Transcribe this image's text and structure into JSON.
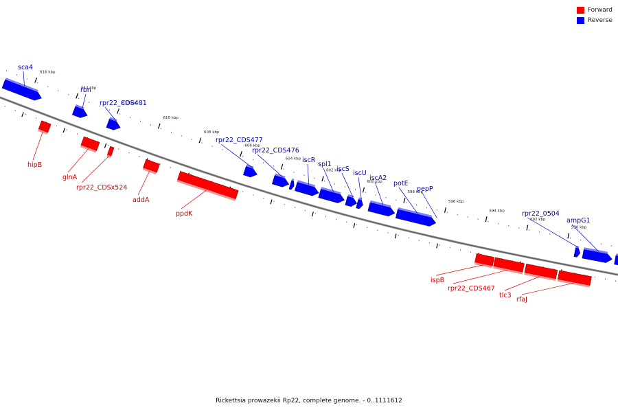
{
  "title": "Rickettsia prowazekii Rp22, complete genome. - 0..1111612",
  "legend": [
    {
      "label": "Forward",
      "color": "#ff0000"
    },
    {
      "label": "Reverse",
      "color": "#0000ff"
    }
  ],
  "colors": {
    "forward": "#ff0000",
    "forward_label": "#cc0000",
    "reverse": "#0000ff",
    "reverse_label": "#0000aa",
    "backbone": "#888888"
  },
  "ticks": [
    "616 kbp",
    "614 kbp",
    "612 kbp",
    "610 kbp",
    "608 kbp",
    "606 kbp",
    "604 kbp",
    "602 kbp",
    "600 kbp",
    "598 kbp",
    "596 kbp",
    "594 kbp",
    "592 kbp",
    "590 kbp"
  ],
  "reverse_genes": [
    {
      "name": "sca4",
      "start": 615470,
      "end": 617300
    },
    {
      "name": "rbn",
      "start": 613250,
      "end": 613900
    },
    {
      "name": "rpr22_CDS481",
      "start": 611650,
      "end": 612250
    },
    {
      "name": "rpr22_CDS477",
      "start": 605000,
      "end": 605600
    },
    {
      "name": "rpr22_CDS476",
      "start": 603450,
      "end": 604200
    },
    {
      "name": "",
      "start": 603200,
      "end": 603380
    },
    {
      "name": "iscR",
      "start": 602000,
      "end": 603100
    },
    {
      "name": "spl1",
      "start": 600750,
      "end": 601950
    },
    {
      "name": "iscS",
      "start": 600150,
      "end": 600650
    },
    {
      "name": "iscU",
      "start": 599850,
      "end": 600120
    },
    {
      "name": "iscA2",
      "start": 598300,
      "end": 599550
    },
    {
      "name": "potE",
      "start": 596300,
      "end": 598200
    },
    {
      "name": "pepP",
      "start": 596300,
      "end": 596300
    },
    {
      "name": "rpr22_0504",
      "start": 589300,
      "end": 589550
    },
    {
      "name": "ampG1",
      "start": 587750,
      "end": 589150
    },
    {
      "name": "",
      "start": 587200,
      "end": 587600
    }
  ],
  "forward_genes": [
    {
      "name": "hipB",
      "start": 614650,
      "end": 615100
    },
    {
      "name": "glnA",
      "start": 612300,
      "end": 613050
    },
    {
      "name": "rpr22_CDSx524",
      "start": 611600,
      "end": 611780
    },
    {
      "name": "addA",
      "start": 609400,
      "end": 610050
    },
    {
      "name": "ppdK",
      "start": 605600,
      "end": 608400
    },
    {
      "name": "ispB",
      "start": 593250,
      "end": 594100
    },
    {
      "name": "rpr22_CDS467",
      "start": 591800,
      "end": 593200
    },
    {
      "name": "tlc3",
      "start": 590200,
      "end": 591700
    },
    {
      "name": "rfaJ",
      "start": 588550,
      "end": 590100
    }
  ]
}
